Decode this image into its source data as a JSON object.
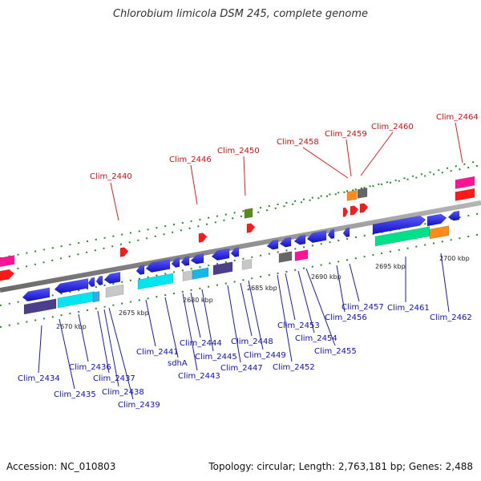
{
  "title": "Chlorobium limicola DSM 245, complete genome",
  "footer": {
    "accession": "Accession: NC_010803",
    "summary": "Topology: circular; Length: 2,763,181 bp; Genes: 2,488"
  },
  "ticks": [
    "2670 kbp",
    "2675 kbp",
    "2680 kbp",
    "2685 kbp",
    "2690 kbp",
    "2695 kbp",
    "2700 kbp"
  ],
  "labels_top": [
    "Clim_2440",
    "Clim_2446",
    "Clim_2450",
    "Clim_2458",
    "Clim_2459",
    "Clim_2460",
    "Clim_2464"
  ],
  "labels_bottom": [
    "Clim_2434",
    "Clim_2435",
    "Clim_2436",
    "Clim_2437",
    "Clim_2438",
    "Clim_2439",
    "Clim_2441",
    "sdhA",
    "Clim_2443",
    "Clim_2444",
    "Clim_2445",
    "Clim_2447",
    "Clim_2448",
    "Clim_2449",
    "Clim_2452",
    "Clim_2453",
    "Clim_2454",
    "Clim_2455",
    "Clim_2456",
    "Clim_2457",
    "Clim_2461",
    "Clim_2462"
  ],
  "colors": {
    "backbone": "#8a8a8a",
    "gene_blue": "#1a1ae6",
    "gene_red": "#ff1a1a",
    "cyan": "#00e5ee",
    "indigo": "#4b3f8c",
    "light_gray": "#c8c8c8",
    "dark_gray": "#666666",
    "pink": "#ff1493",
    "green": "#00e08a",
    "orange": "#ff8c1a",
    "olive": "#5b8a1c",
    "tick_green": "#2a8a2a"
  }
}
